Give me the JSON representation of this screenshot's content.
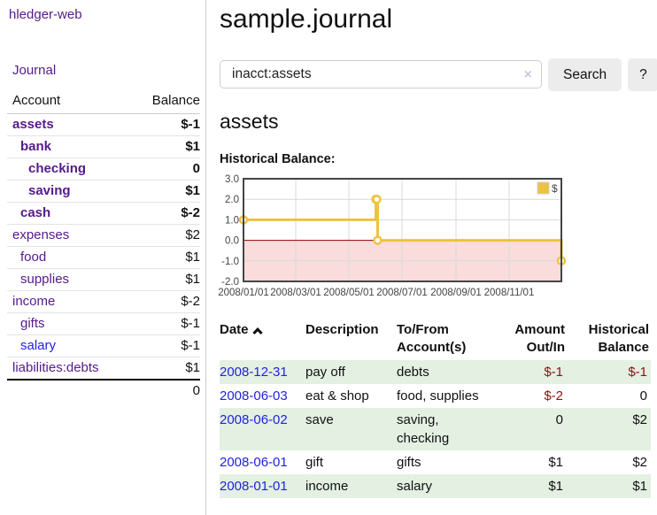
{
  "app": {
    "title": "hledger-web"
  },
  "sidebar": {
    "journal_link": "Journal",
    "table": {
      "account_header": "Account",
      "balance_header": "Balance"
    },
    "accounts": [
      {
        "name": "assets",
        "depth": 1,
        "bold": true,
        "link_color": "purple",
        "balance": "$-1",
        "balance_class": "neg-strong"
      },
      {
        "name": "bank",
        "depth": 2,
        "bold": true,
        "link_color": "purple",
        "balance": "$1",
        "balance_class": "pos"
      },
      {
        "name": "checking",
        "depth": 3,
        "bold": true,
        "link_color": "purple",
        "balance": "0",
        "balance_class": "pos"
      },
      {
        "name": "saving",
        "depth": 3,
        "bold": true,
        "link_color": "purple",
        "balance": "$1",
        "balance_class": "pos"
      },
      {
        "name": "cash",
        "depth": 2,
        "bold": true,
        "link_color": "purple",
        "balance": "$-2",
        "balance_class": "neg-strong"
      },
      {
        "name": "expenses",
        "depth": 1,
        "bold": false,
        "link_color": "purple",
        "balance": "$2",
        "balance_class": "pos"
      },
      {
        "name": "food",
        "depth": 2,
        "bold": false,
        "link_color": "purple",
        "balance": "$1",
        "balance_class": "pos"
      },
      {
        "name": "supplies",
        "depth": 2,
        "bold": false,
        "link_color": "purple",
        "balance": "$1",
        "balance_class": "pos"
      },
      {
        "name": "income",
        "depth": 1,
        "bold": false,
        "link_color": "purple",
        "balance": "$-2",
        "balance_class": "neg-soft"
      },
      {
        "name": "gifts",
        "depth": 2,
        "bold": false,
        "link_color": "purple",
        "balance": "$-1",
        "balance_class": "neg-soft"
      },
      {
        "name": "salary",
        "depth": 2,
        "bold": false,
        "link_color": "blue",
        "balance": "$-1",
        "balance_class": "neg-soft"
      },
      {
        "name": "liabilities:debts",
        "depth": 1,
        "bold": false,
        "link_color": "purple",
        "balance": "$1",
        "balance_class": "pos"
      }
    ],
    "total": "0"
  },
  "header": {
    "title": "sample.journal"
  },
  "search": {
    "value": "inacct:assets",
    "clear_icon": "×",
    "button_label": "Search",
    "help_label": "?"
  },
  "account_page": {
    "heading": "assets",
    "chart_label": "Historical Balance:"
  },
  "chart_data": {
    "type": "line",
    "title": "Historical Balance",
    "step": true,
    "series": [
      {
        "name": "$",
        "color": "#edc240",
        "points": [
          {
            "date": "2008-01-01",
            "value": 1
          },
          {
            "date": "2008-06-01",
            "value": 2
          },
          {
            "date": "2008-06-02",
            "value": 2
          },
          {
            "date": "2008-06-03",
            "value": 0
          },
          {
            "date": "2008-12-31",
            "value": -1
          }
        ]
      }
    ],
    "x_range": [
      "2008-01-01",
      "2008-12-31"
    ],
    "x_ticks": [
      {
        "date": "2008-01-01",
        "label": "2008/01/01"
      },
      {
        "date": "2008-03-01",
        "label": "2008/03/01"
      },
      {
        "date": "2008-05-01",
        "label": "2008/05/01"
      },
      {
        "date": "2008-07-01",
        "label": "2008/07/01"
      },
      {
        "date": "2008-09-01",
        "label": "2008/09/01"
      },
      {
        "date": "2008-11-01",
        "label": "2008/11/01"
      }
    ],
    "ylim": [
      -2,
      3
    ],
    "y_ticks": [
      {
        "v": 3,
        "label": "3.0"
      },
      {
        "v": 2,
        "label": "2.0"
      },
      {
        "v": 1,
        "label": "1.0"
      },
      {
        "v": 0,
        "label": "0.0"
      },
      {
        "v": -1,
        "label": "-1.0"
      },
      {
        "v": -2,
        "label": "-2.0"
      }
    ],
    "legend": {
      "label": "$",
      "position": "top-right",
      "swatch_color": "#edc240"
    },
    "grid": true,
    "grid_color": "#d9d9d9",
    "border_color": "#444444",
    "tick_label_color": "#444444",
    "negative_region_color": "#fadcdc",
    "zero_line_color": "#990000",
    "marker": {
      "fill": "#ffffff",
      "radius": 4
    }
  },
  "transactions": {
    "columns": {
      "date": "Date",
      "description": "Description",
      "accounts_line1": "To/From",
      "accounts_line2": "Account(s)",
      "amount_line1": "Amount",
      "amount_line2": "Out/In",
      "balance_line1": "Historical",
      "balance_line2": "Balance"
    },
    "sort_icon": "chevron-up",
    "rows": [
      {
        "date": "2008-12-31",
        "description": "pay off",
        "accounts": "debts",
        "amount": "$-1",
        "amount_neg": true,
        "balance": "$-1",
        "balance_neg": true,
        "shaded": true
      },
      {
        "date": "2008-06-03",
        "description": "eat & shop",
        "accounts": "food, supplies",
        "amount": "$-2",
        "amount_neg": true,
        "balance": "0",
        "balance_neg": false,
        "shaded": false
      },
      {
        "date": "2008-06-02",
        "description": "save",
        "accounts": "saving, checking",
        "amount": "0",
        "amount_neg": false,
        "balance": "$2",
        "balance_neg": false,
        "shaded": true
      },
      {
        "date": "2008-06-01",
        "description": "gift",
        "accounts": "gifts",
        "amount": "$1",
        "amount_neg": false,
        "balance": "$2",
        "balance_neg": false,
        "shaded": false
      },
      {
        "date": "2008-01-01",
        "description": "income",
        "accounts": "salary",
        "amount": "$1",
        "amount_neg": false,
        "balance": "$1",
        "balance_neg": false,
        "shaded": true
      }
    ]
  },
  "colors": {
    "link_purple": "#551a8b",
    "link_blue": "#2222dd",
    "negative_strong": "#8b0d0d",
    "negative_soft": "#c5807d",
    "row_shade_green": "#e3f0e2",
    "button_gray": "#ececec"
  }
}
